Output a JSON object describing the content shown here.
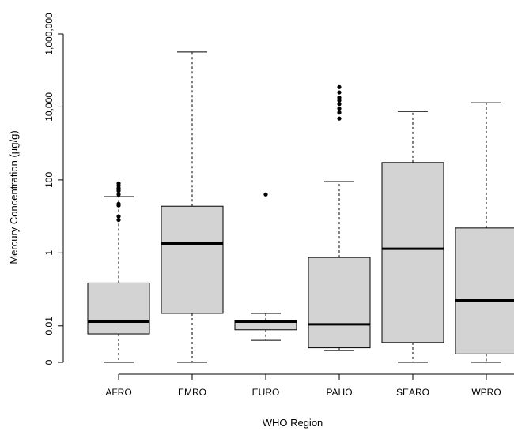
{
  "chart_data": {
    "type": "boxplot",
    "xlabel": "WHO Region",
    "ylabel": "Mercury Concentration (µg/g)",
    "y_scale": "log",
    "y_ticks": [
      {
        "value": 0.001,
        "label": "0"
      },
      {
        "value": 0.01,
        "label": "0.01"
      },
      {
        "value": 1,
        "label": "1"
      },
      {
        "value": 100,
        "label": "100"
      },
      {
        "value": 10000,
        "label": "10,000"
      },
      {
        "value": 1000000,
        "label": "1,000,000"
      }
    ],
    "ylim": [
      0.001,
      1000000
    ],
    "grid": false,
    "colors": {
      "box_fill": "#d3d3d3",
      "line": "#000000"
    },
    "categories": [
      "AFRO",
      "EMRO",
      "EURO",
      "PAHO",
      "SEARO",
      "WPRO"
    ],
    "boxes": [
      {
        "category": "AFRO",
        "whisker_low": 0.001,
        "q1": 0.006,
        "median": 0.013,
        "q3": 0.15,
        "whisker_high": 35,
        "outliers": [
          8,
          10,
          20,
          22,
          40,
          50,
          55,
          60,
          70,
          80
        ]
      },
      {
        "category": "EMRO",
        "whisker_low": 0.001,
        "q1": 0.022,
        "median": 1.8,
        "q3": 19,
        "whisker_high": 320000,
        "outliers": []
      },
      {
        "category": "EURO",
        "whisker_low": 0.004,
        "q1": 0.0078,
        "median": 0.013,
        "q3": 0.014,
        "whisker_high": 0.022,
        "outliers": [
          40
        ]
      },
      {
        "category": "PAHO",
        "whisker_low": 0.0021,
        "q1": 0.0025,
        "median": 0.011,
        "q3": 0.75,
        "whisker_high": 90,
        "outliers": [
          4800,
          7000,
          9000,
          12000,
          15000,
          18000,
          25000,
          35000
        ]
      },
      {
        "category": "SEARO",
        "whisker_low": 0.001,
        "q1": 0.0035,
        "median": 1.3,
        "q3": 300,
        "whisker_high": 7500,
        "outliers": []
      },
      {
        "category": "WPRO",
        "whisker_low": 0.001,
        "q1": 0.0017,
        "median": 0.05,
        "q3": 4.8,
        "whisker_high": 13000,
        "outliers": []
      }
    ]
  }
}
